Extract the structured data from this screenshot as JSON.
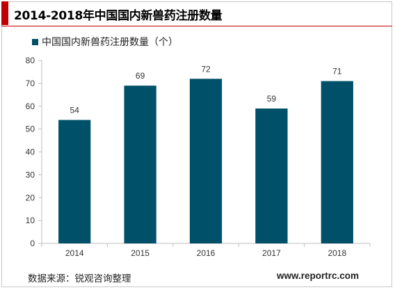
{
  "header": {
    "title": "2014-2018年中国国内新兽药注册数量",
    "accent_color": "#c00000"
  },
  "footer": {
    "source": "数据来源：锐观咨询整理",
    "url": "www.reportrc.com"
  },
  "chart_data": {
    "type": "bar",
    "title": "",
    "xlabel": "",
    "ylabel": "",
    "categories": [
      "2014",
      "2015",
      "2016",
      "2017",
      "2018"
    ],
    "series": [
      {
        "name": "中国国内新兽药注册数量（个）",
        "values": [
          54,
          69,
          72,
          59,
          71
        ],
        "color": "#00506a"
      }
    ],
    "ylim": [
      0,
      80
    ],
    "yticks": [
      0,
      10,
      20,
      30,
      40,
      50,
      60,
      70,
      80
    ],
    "grid": false,
    "data_labels": true,
    "legend_position": "top-left"
  }
}
